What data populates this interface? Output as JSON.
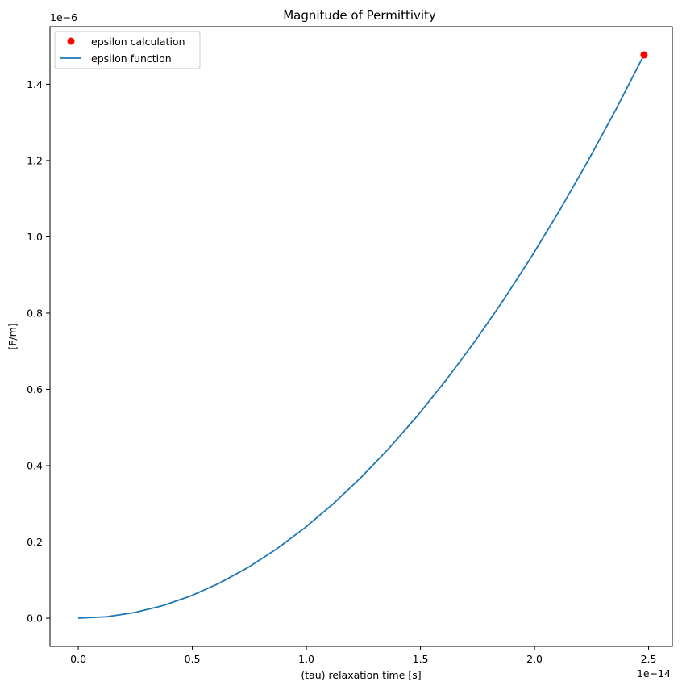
{
  "chart_data": {
    "type": "line",
    "title": "Magnitude of Permittivity",
    "xlabel": "(tau) relaxation time [s]",
    "ylabel": "[F/m]",
    "x_offset_label": "1e−14",
    "y_offset_label": "1e−6",
    "x_scale_exponent": -14,
    "y_scale_exponent": -6,
    "xlim": [
      -0.124,
      2.604
    ],
    "ylim": [
      -0.074,
      1.551
    ],
    "xticks": [
      0.0,
      0.5,
      1.0,
      1.5,
      2.0,
      2.5
    ],
    "xtick_labels": [
      "0.0",
      "0.5",
      "1.0",
      "1.5",
      "2.0",
      "2.5"
    ],
    "yticks": [
      0.0,
      0.2,
      0.4,
      0.6,
      0.8,
      1.0,
      1.2,
      1.4
    ],
    "ytick_labels": [
      "0.0",
      "0.2",
      "0.4",
      "0.6",
      "0.8",
      "1.0",
      "1.2",
      "1.4"
    ],
    "grid": false,
    "legend_position": "upper-left",
    "series": [
      {
        "name": "epsilon calculation",
        "kind": "scatter",
        "color": "#ff0000",
        "x": [
          2.48
        ],
        "y": [
          1.477
        ]
      },
      {
        "name": "epsilon function",
        "kind": "line",
        "color": "#1f77b4",
        "x": [
          0.0,
          0.124,
          0.248,
          0.372,
          0.496,
          0.62,
          0.744,
          0.868,
          0.992,
          1.116,
          1.24,
          1.364,
          1.488,
          1.612,
          1.736,
          1.86,
          1.984,
          2.108,
          2.232,
          2.356,
          2.48
        ],
        "y": [
          0.0,
          0.0037,
          0.0148,
          0.0332,
          0.0591,
          0.0923,
          0.1329,
          0.181,
          0.2364,
          0.2991,
          0.3693,
          0.4468,
          0.5317,
          0.624,
          0.7237,
          0.8308,
          0.9453,
          1.0672,
          1.1964,
          1.333,
          1.477
        ]
      }
    ]
  }
}
